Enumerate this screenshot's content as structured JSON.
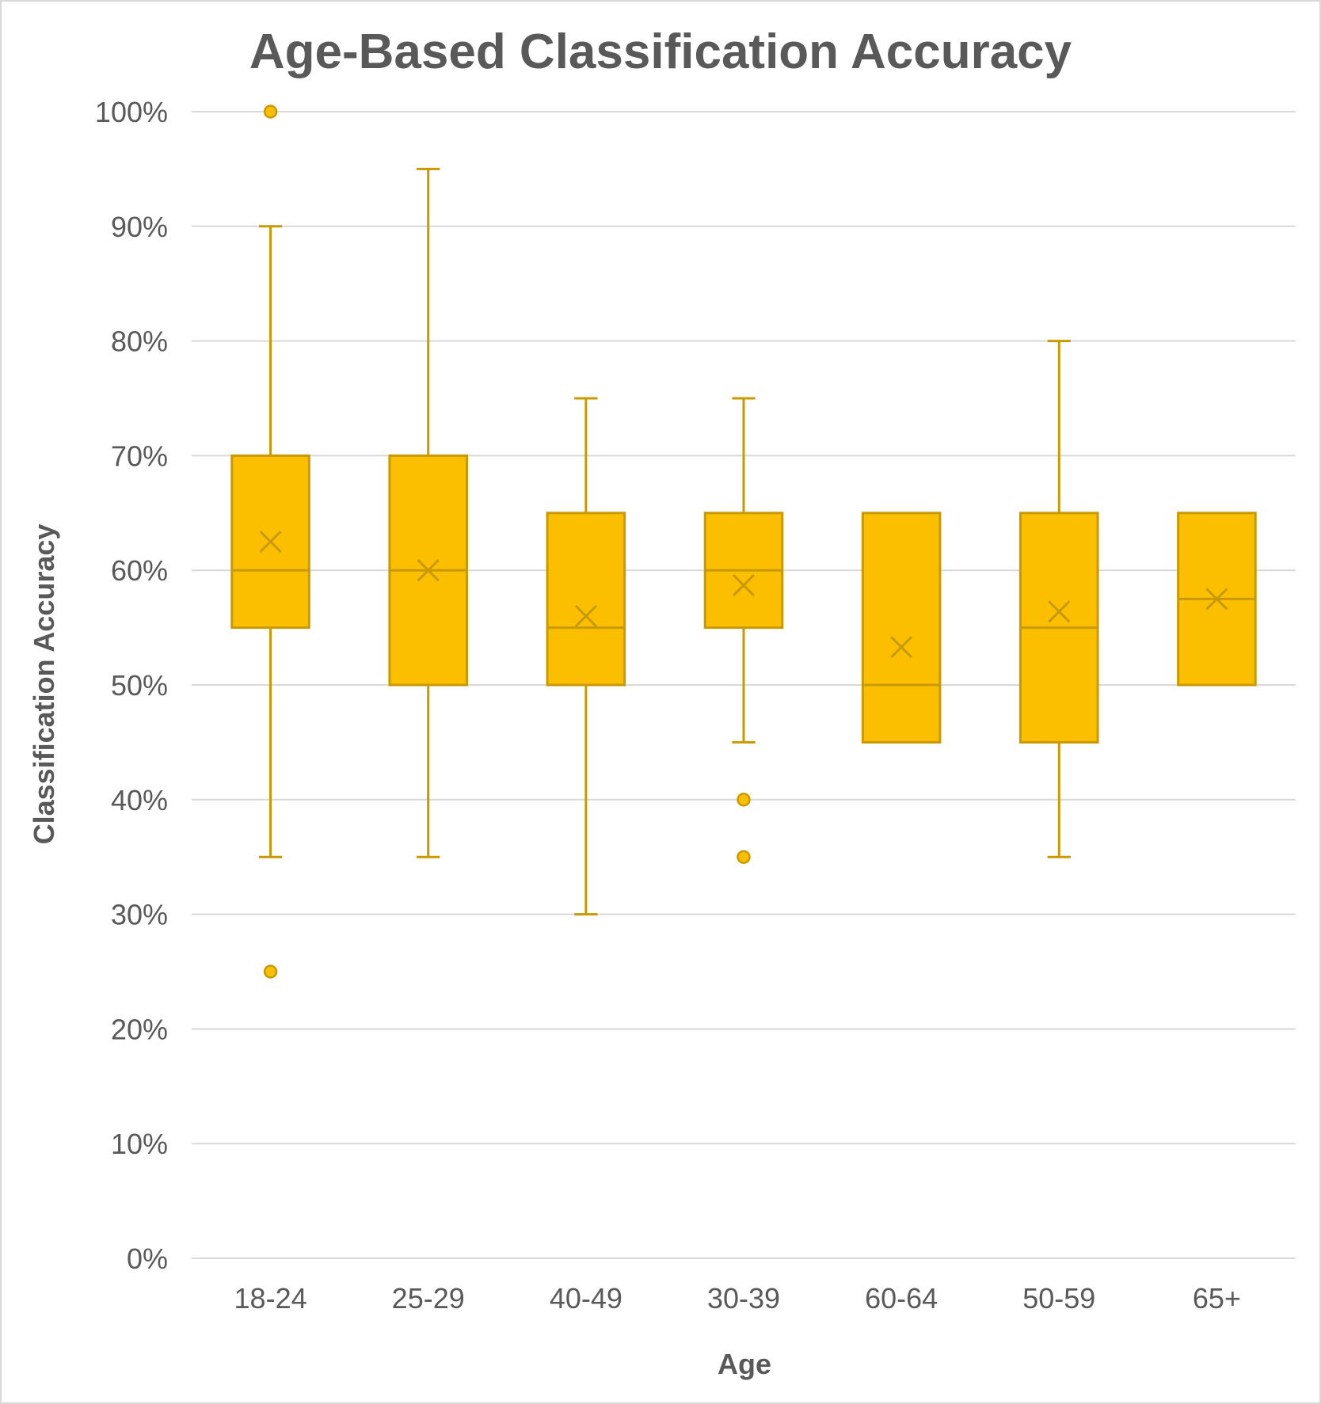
{
  "chart_data": {
    "type": "box",
    "title": "Age-Based Classification Accuracy",
    "xlabel": "Age",
    "ylabel": "Classification Accuracy",
    "ylim": [
      0,
      100
    ],
    "y_ticks": [
      0,
      10,
      20,
      30,
      40,
      50,
      60,
      70,
      80,
      90,
      100
    ],
    "y_tick_format": "{v}%",
    "grid": true,
    "legend": "none",
    "colors": {
      "box_fill": "#FBBF00",
      "box_stroke": "#C99A00",
      "grid": "#d9d9d9",
      "text": "#595959"
    },
    "categories": [
      "18-24",
      "25-29",
      "40-49",
      "30-39",
      "60-64",
      "50-59",
      "65+"
    ],
    "boxes": [
      {
        "category": "18-24",
        "min": 35,
        "q1": 55,
        "median": 60,
        "q3": 70,
        "max": 90,
        "mean": 62.5,
        "outliers": [
          100,
          25
        ]
      },
      {
        "category": "25-29",
        "min": 35,
        "q1": 50,
        "median": 60,
        "q3": 70,
        "max": 95,
        "mean": 60,
        "outliers": []
      },
      {
        "category": "40-49",
        "min": 30,
        "q1": 50,
        "median": 55,
        "q3": 65,
        "max": 75,
        "mean": 56,
        "outliers": []
      },
      {
        "category": "30-39",
        "min": 45,
        "q1": 55,
        "median": 60,
        "q3": 65,
        "max": 75,
        "mean": 58.7,
        "outliers": [
          40,
          35
        ]
      },
      {
        "category": "60-64",
        "min": 45,
        "q1": 45,
        "median": 50,
        "q3": 65,
        "max": 65,
        "mean": 53.3,
        "outliers": []
      },
      {
        "category": "50-59",
        "min": 35,
        "q1": 45,
        "median": 55,
        "q3": 65,
        "max": 80,
        "mean": 56.4,
        "outliers": []
      },
      {
        "category": "65+",
        "min": 50,
        "q1": 50,
        "median": 57.5,
        "q3": 65,
        "max": 65,
        "mean": 57.5,
        "outliers": []
      }
    ]
  }
}
